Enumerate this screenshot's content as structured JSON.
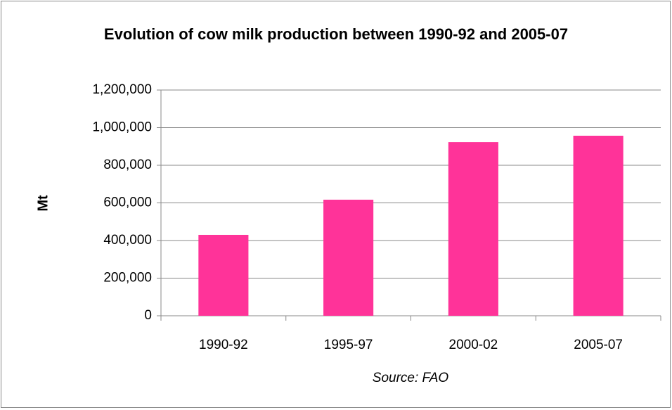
{
  "chart_data": {
    "type": "bar",
    "title": "Evolution of cow milk production between 1990-92 and 2005-07",
    "y_label": "Mt",
    "x_label": "Source: FAO",
    "categories": [
      "1990-92",
      "1995-97",
      "2000-02",
      "2005-07"
    ],
    "values": [
      430000,
      617000,
      923000,
      957000
    ],
    "color": "#ff3399",
    "ylim": [
      0,
      1200000
    ],
    "yticks": [
      0,
      {
        "value": 200000,
        "label": "200,000"
      },
      {
        "value": 400000,
        "label": "400,000"
      },
      {
        "value": 600000,
        "label": "600,000"
      },
      {
        "value": 800000,
        "label": "800,000"
      },
      {
        "value": 1000000,
        "label": "1,000,000"
      },
      {
        "value": 1200000,
        "label": "1,200,000"
      }
    ],
    "grid": true
  }
}
